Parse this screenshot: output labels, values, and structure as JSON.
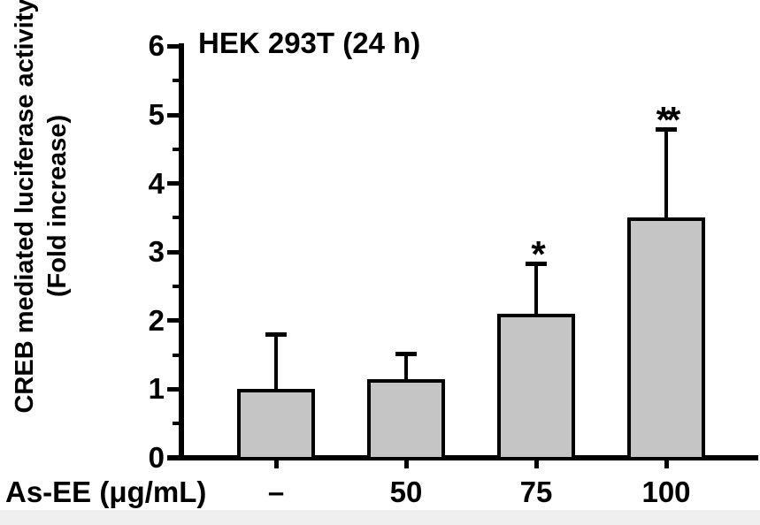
{
  "figure": {
    "title": "HEK 293T (24 h)",
    "y_axis_title_line1": "CREB mediated luciferase activity",
    "y_axis_title_line2": "(Fold increase)",
    "x_axis_label": "As-EE (μg/mL)"
  },
  "chart_data": {
    "type": "bar",
    "title": "HEK 293T (24 h)",
    "xlabel": "As-EE (μg/mL)",
    "ylabel": "CREB mediated luciferase activity (Fold increase)",
    "categories": [
      "–",
      "50",
      "75",
      "100"
    ],
    "values": [
      1.0,
      1.15,
      2.1,
      3.5
    ],
    "errors_upper": [
      0.8,
      0.37,
      0.73,
      1.3
    ],
    "significance": [
      "",
      "",
      "*",
      "**"
    ],
    "ylim": [
      0,
      6
    ],
    "y_major_tick_step": 1,
    "y_minor_tick_step": 0.5,
    "grid": "off",
    "legend": "none",
    "bar_fill_color": "#c5c5c5",
    "bar_border_color": "#000000",
    "axis_color": "#000000"
  }
}
